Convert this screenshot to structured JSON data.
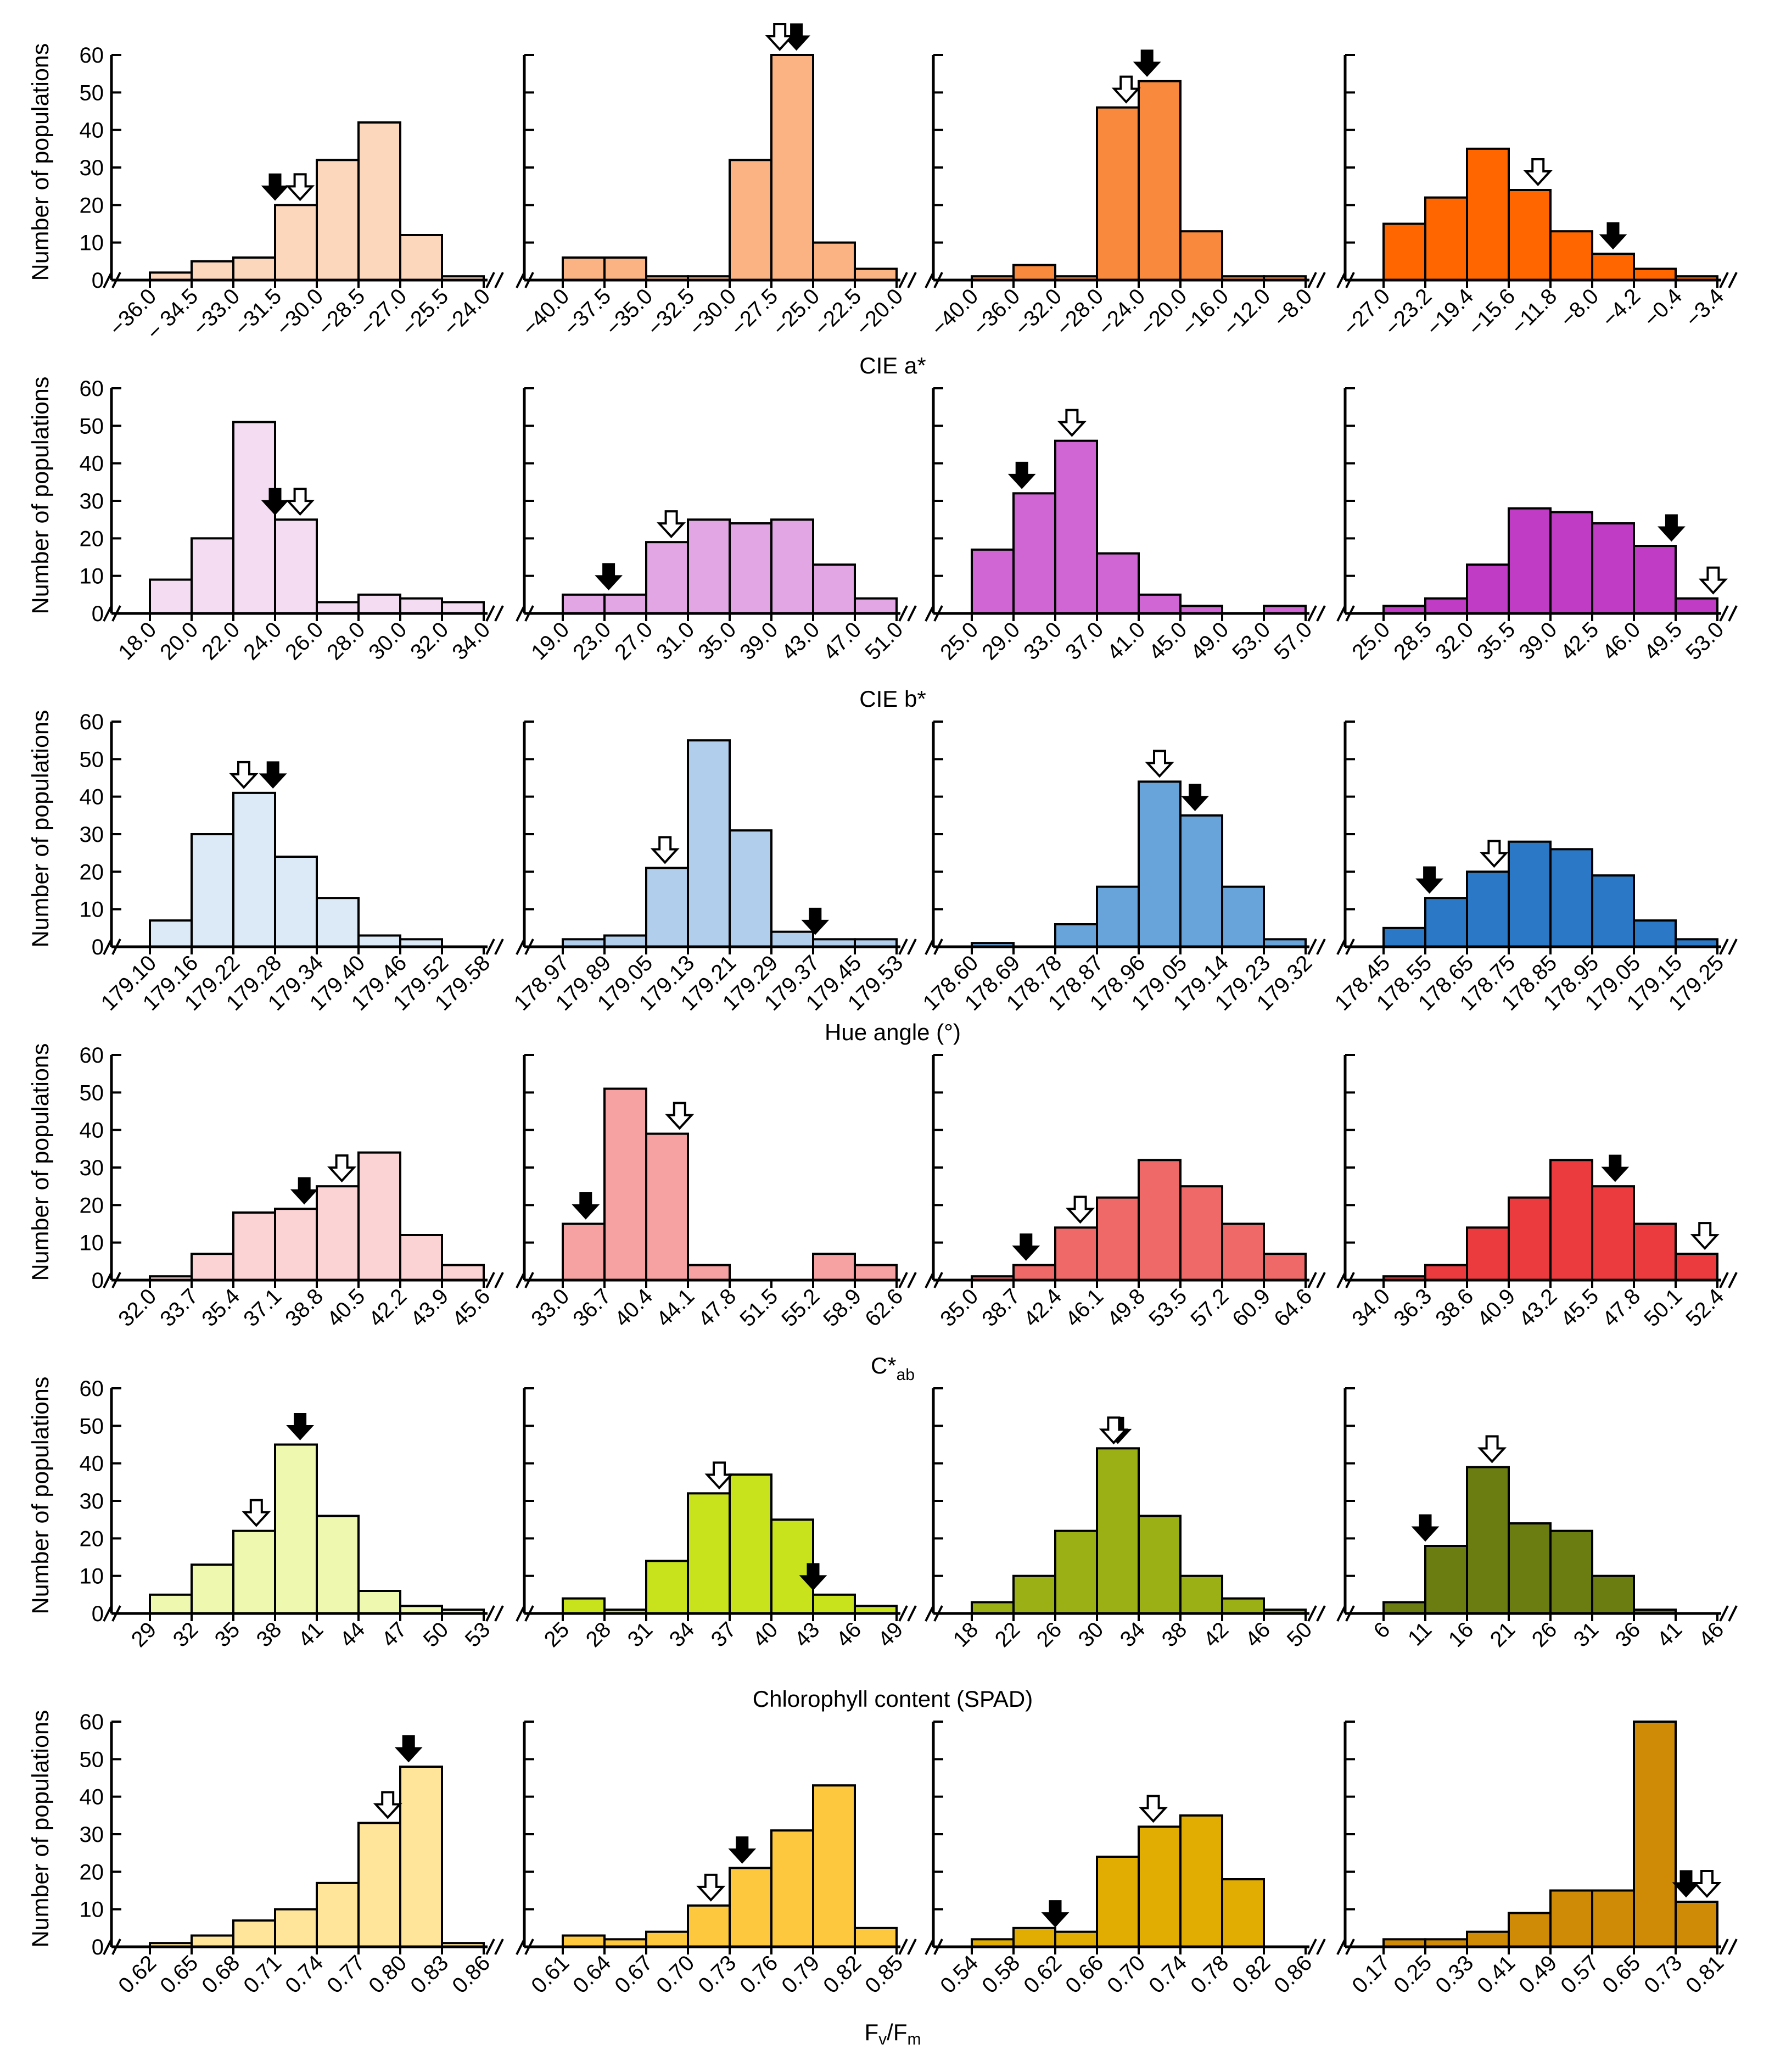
{
  "y_axis_label": "Number of populations",
  "chart_data": [
    {
      "row": 0,
      "col": 0,
      "type": "bar",
      "color": "#FDD7BC",
      "ylim": [
        0,
        60
      ],
      "yticks": [
        "0",
        "10",
        "20",
        "30",
        "40",
        "50",
        "60"
      ],
      "xticks": [
        "−36.0",
        "− 34.5",
        "−33.0",
        "−31.5",
        "−30.0",
        "−28.5",
        "−27.0",
        "−25.5",
        "−24.0"
      ],
      "values": [
        2,
        5,
        6,
        20,
        32,
        42,
        12,
        1
      ],
      "arrows": {
        "filled": 3,
        "open": 3.6
      }
    },
    {
      "row": 0,
      "col": 1,
      "type": "bar",
      "color": "#FBB383",
      "ylim": [
        0,
        60
      ],
      "yticks": [],
      "xticks": [
        "−40.0",
        "−37.5",
        "−35.0",
        "−32.5",
        "−30.0",
        "−27.5",
        "−25.0",
        "−22.5",
        "−20.0"
      ],
      "values": [
        6,
        6,
        1,
        1,
        32,
        60,
        10,
        3
      ],
      "arrows": {
        "filled": 5.6,
        "open": 5.2
      }
    },
    {
      "row": 0,
      "col": 2,
      "type": "bar",
      "color": "#F98A3D",
      "ylim": [
        0,
        60
      ],
      "yticks": [],
      "xticks": [
        "−40.0",
        "−36.0",
        "−32.0",
        "−28.0",
        "−24.0",
        "−20.0",
        "−16.0",
        "−12.0",
        "−8.0"
      ],
      "values": [
        1,
        4,
        1,
        46,
        53,
        13,
        1,
        1
      ],
      "arrows": {
        "filled": 4.2,
        "open": 3.7
      }
    },
    {
      "row": 0,
      "col": 3,
      "type": "bar",
      "color": "#FF6600",
      "ylim": [
        0,
        60
      ],
      "yticks": [],
      "xticks": [
        "−27.0",
        "−23.2",
        "−19.4",
        "−15.6",
        "−11.8",
        "−8.0",
        "−4.2",
        "−0.4",
        "−3.4"
      ],
      "values": [
        15,
        22,
        35,
        24,
        13,
        7,
        3,
        1
      ],
      "arrows": {
        "filled": 5.5,
        "open": 3.7
      }
    },
    {
      "row": 0,
      "title": "CIE a*"
    },
    {
      "row": 1,
      "col": 0,
      "type": "bar",
      "color": "#F4DDF3",
      "ylim": [
        0,
        60
      ],
      "yticks": [
        "0",
        "10",
        "20",
        "30",
        "40",
        "50",
        "60"
      ],
      "xticks": [
        "18.0",
        "20.0",
        "22.0",
        "24.0",
        "26.0",
        "28.0",
        "30.0",
        "32.0",
        "34.0"
      ],
      "values": [
        9,
        20,
        51,
        25,
        3,
        5,
        4,
        3
      ],
      "arrows": {
        "filled": 3,
        "open": 3.6
      }
    },
    {
      "row": 1,
      "col": 1,
      "type": "bar",
      "color": "#E2A6E4",
      "ylim": [
        0,
        60
      ],
      "yticks": [],
      "xticks": [
        "19.0",
        "23.0",
        "27.0",
        "31.0",
        "35.0",
        "39.0",
        "43.0",
        "47.0",
        "51.0"
      ],
      "values": [
        5,
        5,
        19,
        25,
        24,
        25,
        13,
        4
      ],
      "arrows": {
        "filled": 1.1,
        "open": 2.6
      }
    },
    {
      "row": 1,
      "col": 2,
      "type": "bar",
      "color": "#D066D3",
      "ylim": [
        0,
        60
      ],
      "yticks": [],
      "xticks": [
        "25.0",
        "29.0",
        "33.0",
        "37.0",
        "41.0",
        "45.0",
        "49.0",
        "53.0",
        "57.0"
      ],
      "values": [
        17,
        32,
        46,
        16,
        5,
        2,
        0,
        2
      ],
      "arrows": {
        "filled": 1.2,
        "open": 2.4
      }
    },
    {
      "row": 1,
      "col": 3,
      "type": "bar",
      "color": "#C13CC4",
      "ylim": [
        0,
        60
      ],
      "yticks": [],
      "xticks": [
        "25.0",
        "28.5",
        "32.0",
        "35.5",
        "39.0",
        "42.5",
        "46.0",
        "49.5",
        "53.0"
      ],
      "values": [
        2,
        4,
        13,
        28,
        27,
        24,
        18,
        4
      ],
      "arrows": {
        "filled": 6.9,
        "open": 7.9
      }
    },
    {
      "row": 1,
      "title": "CIE b*"
    },
    {
      "row": 2,
      "col": 0,
      "type": "bar",
      "color": "#DCE9F6",
      "ylim": [
        0,
        60
      ],
      "yticks": [
        "0",
        "10",
        "20",
        "30",
        "40",
        "50",
        "60"
      ],
      "xticks": [
        "179.10",
        "179.16",
        "179.22",
        "179.28",
        "179.34",
        "179.40",
        "179.46",
        "179.52",
        "179.58"
      ],
      "values": [
        7,
        30,
        41,
        24,
        13,
        3,
        2,
        0
      ],
      "arrows": {
        "filled": 2.95,
        "open": 2.25
      }
    },
    {
      "row": 2,
      "col": 1,
      "type": "bar",
      "color": "#B1CFED",
      "ylim": [
        0,
        60
      ],
      "yticks": [],
      "xticks": [
        "178.97",
        "179.89",
        "179.05",
        "179.13",
        "179.21",
        "179.29",
        "179.37",
        "179.45",
        "179.53"
      ],
      "values": [
        2,
        3,
        21,
        55,
        31,
        4,
        2,
        2
      ],
      "arrows": {
        "filled": 6.05,
        "open": 2.45
      }
    },
    {
      "row": 2,
      "col": 2,
      "type": "bar",
      "color": "#68A3D9",
      "ylim": [
        0,
        60
      ],
      "yticks": [],
      "xticks": [
        "178.60",
        "178.69",
        "178.78",
        "178.87",
        "178.96",
        "179.05",
        "179.14",
        "179.23",
        "179.32"
      ],
      "values": [
        1,
        0,
        6,
        16,
        44,
        35,
        16,
        2
      ],
      "arrows": {
        "filled": 5.35,
        "open": 4.5
      }
    },
    {
      "row": 2,
      "col": 3,
      "type": "bar",
      "color": "#2B78C6",
      "ylim": [
        0,
        60
      ],
      "yticks": [],
      "xticks": [
        "178.45",
        "178.55",
        "178.65",
        "178.75",
        "178.85",
        "178.95",
        "179.05",
        "179.15",
        "179.25"
      ],
      "values": [
        5,
        13,
        20,
        28,
        26,
        19,
        7,
        2
      ],
      "arrows": {
        "filled": 1.1,
        "open": 2.65
      }
    },
    {
      "row": 2,
      "title": "Hue angle (°)"
    },
    {
      "row": 3,
      "col": 0,
      "type": "bar",
      "color": "#FCD3D4",
      "ylim": [
        0,
        60
      ],
      "yticks": [
        "0",
        "10",
        "20",
        "30",
        "40",
        "50",
        "60"
      ],
      "xticks": [
        "32.0",
        "33.7",
        "35.4",
        "37.1",
        "38.8",
        "40.5",
        "42.2",
        "43.9",
        "45.6"
      ],
      "values": [
        1,
        7,
        18,
        19,
        25,
        34,
        12,
        4
      ],
      "arrows": {
        "filled": 3.7,
        "open": 4.6
      }
    },
    {
      "row": 3,
      "col": 1,
      "type": "bar",
      "color": "#F6A1A2",
      "ylim": [
        0,
        60
      ],
      "yticks": [],
      "xticks": [
        "33.0",
        "36.7",
        "40.4",
        "44.1",
        "47.8",
        "51.5",
        "55.2",
        "58.9",
        "62.6"
      ],
      "values": [
        15,
        51,
        39,
        4,
        0,
        0,
        7,
        4
      ],
      "arrows": {
        "filled": 0.55,
        "open": 2.8
      }
    },
    {
      "row": 3,
      "col": 2,
      "type": "bar",
      "color": "#F06969",
      "ylim": [
        0,
        60
      ],
      "yticks": [],
      "xticks": [
        "35.0",
        "38.7",
        "42.4",
        "46.1",
        "49.8",
        "53.5",
        "57.2",
        "60.9",
        "64.6"
      ],
      "values": [
        1,
        4,
        14,
        22,
        32,
        25,
        15,
        7
      ],
      "arrows": {
        "filled": 1.3,
        "open": 2.6
      }
    },
    {
      "row": 3,
      "col": 3,
      "type": "bar",
      "color": "#EC3B3F",
      "ylim": [
        0,
        60
      ],
      "yticks": [],
      "xticks": [
        "34.0",
        "36.3",
        "38.6",
        "40.9",
        "43.2",
        "45.5",
        "47.8",
        "50.1",
        "52.4"
      ],
      "values": [
        1,
        4,
        14,
        22,
        32,
        25,
        15,
        7
      ],
      "arrows": {
        "filled": 5.55,
        "open": 7.7
      }
    },
    {
      "row": 3,
      "title": "C*ab",
      "title_main": "C*",
      "title_sub": "ab"
    },
    {
      "row": 4,
      "col": 0,
      "type": "bar",
      "color": "#EEF8AE",
      "ylim": [
        0,
        60
      ],
      "yticks": [
        "0",
        "10",
        "20",
        "30",
        "40",
        "50",
        "60"
      ],
      "xticks": [
        "29",
        "32",
        "35",
        "38",
        "41",
        "44",
        "47",
        "50",
        "53"
      ],
      "values": [
        5,
        13,
        22,
        45,
        26,
        6,
        2,
        1
      ],
      "arrows": {
        "filled": 3.6,
        "open": 2.55
      }
    },
    {
      "row": 4,
      "col": 1,
      "type": "bar",
      "color": "#C8E31C",
      "ylim": [
        0,
        60
      ],
      "yticks": [],
      "xticks": [
        "25",
        "28",
        "31",
        "34",
        "37",
        "40",
        "43",
        "46",
        "49"
      ],
      "values": [
        4,
        1,
        14,
        32,
        37,
        25,
        5,
        2
      ],
      "arrows": {
        "filled": 6.0,
        "open": 3.75
      }
    },
    {
      "row": 4,
      "col": 2,
      "type": "bar",
      "color": "#9AB014",
      "ylim": [
        0,
        60
      ],
      "yticks": [],
      "xticks": [
        "18",
        "22",
        "26",
        "30",
        "34",
        "38",
        "42",
        "46",
        "50"
      ],
      "values": [
        3,
        10,
        22,
        44,
        26,
        10,
        4,
        1
      ],
      "arrows": {
        "filled": 3.5,
        "open": 3.4
      }
    },
    {
      "row": 4,
      "col": 3,
      "type": "bar",
      "color": "#6B7C11",
      "ylim": [
        0,
        60
      ],
      "yticks": [],
      "xticks": [
        "6",
        "11",
        "16",
        "21",
        "26",
        "31",
        "36",
        "41",
        "46"
      ],
      "values": [
        3,
        18,
        39,
        24,
        22,
        10,
        1,
        0
      ],
      "arrows": {
        "filled": 1.0,
        "open": 2.6
      }
    },
    {
      "row": 4,
      "title": "Chlorophyll content (SPAD)"
    },
    {
      "row": 5,
      "col": 0,
      "type": "bar",
      "color": "#FFE59A",
      "ylim": [
        0,
        60
      ],
      "yticks": [
        "0",
        "10",
        "20",
        "30",
        "40",
        "50",
        "60"
      ],
      "xticks": [
        "0.62",
        "0.65",
        "0.68",
        "0.71",
        "0.74",
        "0.77",
        "0.80",
        "0.83",
        "0.86"
      ],
      "values": [
        1,
        3,
        7,
        10,
        17,
        33,
        48,
        1
      ],
      "arrows": {
        "filled": 6.2,
        "open": 5.7
      }
    },
    {
      "row": 5,
      "col": 1,
      "type": "bar",
      "color": "#FEC83E",
      "ylim": [
        0,
        60
      ],
      "yticks": [],
      "xticks": [
        "0.61",
        "0.64",
        "0.67",
        "0.70",
        "0.73",
        "0.76",
        "0.79",
        "0.82",
        "0.85"
      ],
      "values": [
        3,
        2,
        4,
        11,
        21,
        31,
        43,
        5
      ],
      "arrows": {
        "filled": 4.3,
        "open": 3.55
      }
    },
    {
      "row": 5,
      "col": 2,
      "type": "bar",
      "color": "#E2AD02",
      "ylim": [
        0,
        60
      ],
      "yticks": [],
      "xticks": [
        "0.54",
        "0.58",
        "0.62",
        "0.66",
        "0.70",
        "0.74",
        "0.78",
        "0.82",
        "0.86"
      ],
      "values": [
        2,
        5,
        4,
        24,
        32,
        35,
        18,
        0
      ],
      "arrows": {
        "filled": 2.0,
        "open": 4.35
      }
    },
    {
      "row": 5,
      "col": 3,
      "type": "bar",
      "color": "#CF8A06",
      "ylim": [
        0,
        60
      ],
      "yticks": [],
      "xticks": [
        "0.17",
        "0.25",
        "0.33",
        "0.41",
        "0.49",
        "0.57",
        "0.65",
        "0.73",
        "0.81"
      ],
      "values": [
        2,
        2,
        4,
        9,
        15,
        15,
        60,
        12
      ],
      "arrows": {
        "filled": 7.25,
        "open": 7.75
      }
    },
    {
      "row": 5,
      "title": "Fv/Fm",
      "title_main": "F",
      "title_parts": [
        "F",
        "v",
        "/F",
        "m"
      ]
    }
  ]
}
